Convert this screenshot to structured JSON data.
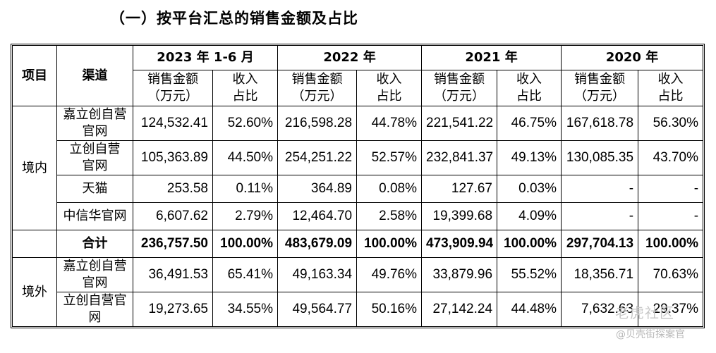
{
  "heading": "（一）按平台汇总的销售金额及占比",
  "columns": {
    "project": "项目",
    "channel": "渠道",
    "years": [
      "2023 年 1-6 月",
      "2022 年",
      "2021 年",
      "2020 年"
    ],
    "amount": "销售金额（万元）",
    "amount_l1": "销售金额",
    "amount_l2": "（万元）",
    "share_l1": "收入",
    "share_l2": "占比"
  },
  "domestic": {
    "label": "境内",
    "rows": [
      {
        "channel_l1": "嘉立创自营",
        "channel_l2": "官网",
        "values": [
          "124,532.41",
          "52.60%",
          "216,598.28",
          "44.78%",
          "221,541.22",
          "46.75%",
          "167,618.78",
          "56.30%"
        ]
      },
      {
        "channel_l1": "立创自营",
        "channel_l2": "官网",
        "values": [
          "105,363.89",
          "44.50%",
          "254,251.22",
          "52.57%",
          "232,841.37",
          "49.13%",
          "130,085.35",
          "43.70%"
        ]
      },
      {
        "channel_l1": "天猫",
        "channel_l2": "",
        "values": [
          "253.58",
          "0.11%",
          "364.89",
          "0.08%",
          "127.67",
          "0.03%",
          "-",
          "-"
        ]
      },
      {
        "channel_l1": "中信华官网",
        "channel_l2": "",
        "values": [
          "6,607.62",
          "2.79%",
          "12,464.70",
          "2.58%",
          "19,399.68",
          "4.09%",
          "-",
          "-"
        ]
      }
    ]
  },
  "total": {
    "label": "合计",
    "values": [
      "236,757.50",
      "100.00%",
      "483,679.09",
      "100.00%",
      "473,909.94",
      "100.00%",
      "297,704.13",
      "100.00%"
    ]
  },
  "overseas": {
    "label": "境外",
    "rows": [
      {
        "channel_l1": "嘉立创自营",
        "channel_l2": "官网",
        "values": [
          "36,491.53",
          "65.41%",
          "49,163.34",
          "49.76%",
          "33,879.96",
          "55.52%",
          "18,356.71",
          "70.63%"
        ]
      },
      {
        "channel_l1": "立创自营官",
        "channel_l2": "网",
        "values": [
          "19,273.65",
          "34.55%",
          "49,564.77",
          "50.16%",
          "27,142.24",
          "44.48%",
          "7,632.63",
          "29.37%"
        ]
      }
    ]
  },
  "watermark": {
    "line1": "老虎社区",
    "line2": "@贝壳街探案官"
  }
}
